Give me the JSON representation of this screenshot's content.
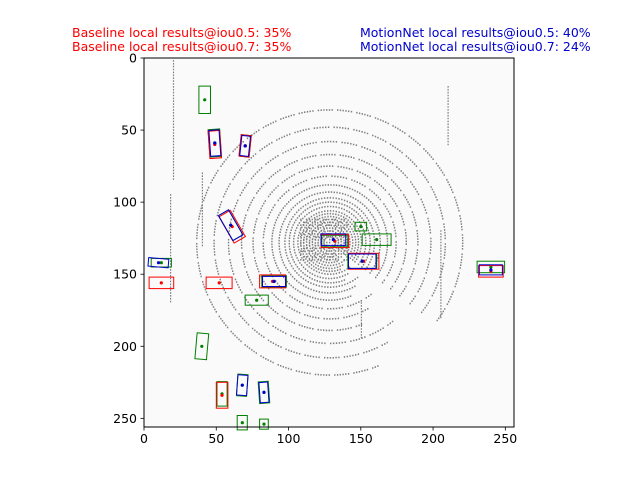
{
  "captions": {
    "baseline_iou05": "Baseline local results@iou0.5: 35%",
    "baseline_iou07": "Baseline local results@iou0.7: 35%",
    "motionnet_iou05": "MotionNet local results@iou0.5: 40%",
    "motionnet_iou07": "MotionNet local results@iou0.7: 24%"
  },
  "colors": {
    "baseline": "#ff0000",
    "motionnet": "#0000cc",
    "ground_truth": "#008000",
    "points": "#808080",
    "background": "#fafafa"
  },
  "chart_data": {
    "type": "scatter",
    "title": "",
    "xlabel": "",
    "ylabel": "",
    "xlim": [
      0,
      256
    ],
    "ylim": [
      256,
      0
    ],
    "y_inverted": true,
    "grid": false,
    "xticks": [
      "0",
      "50",
      "100",
      "150",
      "200",
      "250"
    ],
    "yticks": [
      "0",
      "50",
      "100",
      "150",
      "200",
      "250"
    ],
    "boxes": [
      {
        "series": "ground_truth",
        "cx": 42,
        "cy": 29,
        "w": 8,
        "h": 19,
        "angle": 0
      },
      {
        "series": "ground_truth",
        "cx": 49,
        "cy": 59,
        "w": 8,
        "h": 19,
        "angle": -4
      },
      {
        "series": "baseline",
        "cx": 49,
        "cy": 60,
        "w": 8,
        "h": 19,
        "angle": -4
      },
      {
        "series": "motionnet",
        "cx": 49,
        "cy": 59,
        "w": 7,
        "h": 18,
        "angle": -4
      },
      {
        "series": "ground_truth",
        "cx": 70,
        "cy": 61,
        "w": 7,
        "h": 15,
        "angle": 6
      },
      {
        "series": "baseline",
        "cx": 70,
        "cy": 61,
        "w": 7,
        "h": 15,
        "angle": 6
      },
      {
        "series": "motionnet",
        "cx": 70,
        "cy": 61,
        "w": 6,
        "h": 14,
        "angle": 6
      },
      {
        "series": "ground_truth",
        "cx": 60,
        "cy": 116,
        "w": 8,
        "h": 20,
        "angle": -30
      },
      {
        "series": "baseline",
        "cx": 61,
        "cy": 117,
        "w": 9,
        "h": 21,
        "angle": -30
      },
      {
        "series": "motionnet",
        "cx": 60,
        "cy": 116,
        "w": 8,
        "h": 20,
        "angle": -30
      },
      {
        "series": "ground_truth",
        "cx": 12,
        "cy": 142,
        "w": 14,
        "h": 6,
        "angle": 0
      },
      {
        "series": "motionnet",
        "cx": 10,
        "cy": 142,
        "w": 14,
        "h": 6,
        "angle": 5
      },
      {
        "series": "baseline",
        "cx": 12,
        "cy": 156,
        "w": 17,
        "h": 8,
        "angle": 0
      },
      {
        "series": "baseline",
        "cx": 52,
        "cy": 156,
        "w": 18,
        "h": 8,
        "angle": 0
      },
      {
        "series": "ground_truth",
        "cx": 90,
        "cy": 155,
        "w": 17,
        "h": 8,
        "angle": 0
      },
      {
        "series": "baseline",
        "cx": 89,
        "cy": 155,
        "w": 18,
        "h": 9,
        "angle": 0
      },
      {
        "series": "motionnet",
        "cx": 90,
        "cy": 155,
        "w": 16,
        "h": 7,
        "angle": 0
      },
      {
        "series": "ground_truth",
        "cx": 78,
        "cy": 168,
        "w": 16,
        "h": 7,
        "angle": 0
      },
      {
        "series": "ground_truth",
        "cx": 132,
        "cy": 127,
        "w": 18,
        "h": 8,
        "angle": 0
      },
      {
        "series": "baseline",
        "cx": 132,
        "cy": 127,
        "w": 19,
        "h": 9,
        "angle": 0
      },
      {
        "series": "motionnet",
        "cx": 131,
        "cy": 126,
        "w": 17,
        "h": 8,
        "angle": 0
      },
      {
        "series": "ground_truth",
        "cx": 150,
        "cy": 117,
        "w": 8,
        "h": 6,
        "angle": 0
      },
      {
        "series": "ground_truth",
        "cx": 161,
        "cy": 126,
        "w": 20,
        "h": 8,
        "angle": 0
      },
      {
        "series": "ground_truth",
        "cx": 151,
        "cy": 141,
        "w": 20,
        "h": 10,
        "angle": 0
      },
      {
        "series": "baseline",
        "cx": 152,
        "cy": 141,
        "w": 21,
        "h": 11,
        "angle": 0
      },
      {
        "series": "motionnet",
        "cx": 151,
        "cy": 141,
        "w": 19,
        "h": 10,
        "angle": 0
      },
      {
        "series": "ground_truth",
        "cx": 240,
        "cy": 145,
        "w": 19,
        "h": 8,
        "angle": 0
      },
      {
        "series": "baseline",
        "cx": 240,
        "cy": 148,
        "w": 17,
        "h": 8,
        "angle": 0
      },
      {
        "series": "motionnet",
        "cx": 240,
        "cy": 147,
        "w": 16,
        "h": 7,
        "angle": 0
      },
      {
        "series": "ground_truth",
        "cx": 40,
        "cy": 200,
        "w": 8,
        "h": 18,
        "angle": 5
      },
      {
        "series": "ground_truth",
        "cx": 54,
        "cy": 233,
        "w": 7,
        "h": 17,
        "angle": 0
      },
      {
        "series": "baseline",
        "cx": 54,
        "cy": 234,
        "w": 8,
        "h": 18,
        "angle": 0
      },
      {
        "series": "ground_truth",
        "cx": 68,
        "cy": 227,
        "w": 7,
        "h": 15,
        "angle": 4
      },
      {
        "series": "motionnet",
        "cx": 68,
        "cy": 227,
        "w": 7,
        "h": 14,
        "angle": 4
      },
      {
        "series": "ground_truth",
        "cx": 83,
        "cy": 232,
        "w": 7,
        "h": 15,
        "angle": -4
      },
      {
        "series": "motionnet",
        "cx": 83,
        "cy": 232,
        "w": 6,
        "h": 14,
        "angle": -4
      },
      {
        "series": "ground_truth",
        "cx": 68,
        "cy": 253,
        "w": 7,
        "h": 10,
        "angle": 0
      },
      {
        "series": "ground_truth",
        "cx": 83,
        "cy": 254,
        "w": 6,
        "h": 7,
        "angle": 0
      }
    ]
  }
}
